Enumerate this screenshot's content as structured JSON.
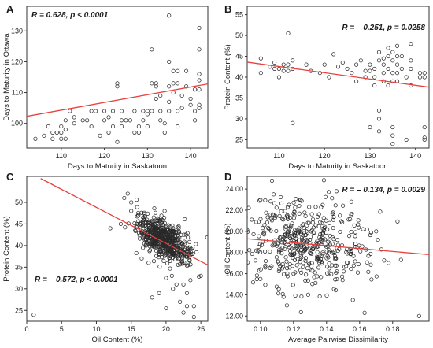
{
  "colors": {
    "points": "#2a2a2a",
    "fit_line": "#e8413c",
    "frame": "#333333",
    "background": "#ffffff"
  },
  "chart_data": [
    {
      "type": "scatter",
      "panel": "A",
      "xlabel": "Days to Maturity in Saskatoon",
      "ylabel": "Days to Maturity in Ottawa",
      "xlim": [
        102,
        144
      ],
      "ylim": [
        92,
        138
      ],
      "xticks": [
        110,
        120,
        130,
        140
      ],
      "yticks": [
        100,
        110,
        120,
        130
      ],
      "annotation": {
        "r_text": "R = 0.628, ",
        "p_text": "p < 0.0001"
      },
      "fit": {
        "x": [
          102,
          144
        ],
        "y": [
          102.3,
          112.8
        ]
      },
      "points": [
        [
          104,
          95
        ],
        [
          106,
          96
        ],
        [
          107,
          99
        ],
        [
          108,
          95
        ],
        [
          108,
          97
        ],
        [
          109,
          97
        ],
        [
          110,
          95
        ],
        [
          110,
          97
        ],
        [
          110,
          99
        ],
        [
          111,
          95
        ],
        [
          111,
          98
        ],
        [
          111,
          101
        ],
        [
          112,
          104
        ],
        [
          113,
          100
        ],
        [
          113,
          102
        ],
        [
          115,
          101
        ],
        [
          116,
          101
        ],
        [
          117,
          104
        ],
        [
          117,
          99
        ],
        [
          118,
          104
        ],
        [
          119,
          96
        ],
        [
          120,
          101
        ],
        [
          120,
          104
        ],
        [
          121,
          102
        ],
        [
          121,
          97
        ],
        [
          122,
          99
        ],
        [
          122,
          104
        ],
        [
          123,
          94
        ],
        [
          123,
          112
        ],
        [
          123,
          113
        ],
        [
          124,
          101
        ],
        [
          124,
          104
        ],
        [
          124,
          99
        ],
        [
          125,
          101
        ],
        [
          126,
          101
        ],
        [
          127,
          97
        ],
        [
          127,
          104
        ],
        [
          128,
          97
        ],
        [
          128,
          99
        ],
        [
          129,
          104
        ],
        [
          129,
          101
        ],
        [
          130,
          99
        ],
        [
          130,
          104
        ],
        [
          130,
          103
        ],
        [
          131,
          104
        ],
        [
          131,
          113
        ],
        [
          131,
          124
        ],
        [
          132,
          113
        ],
        [
          132,
          108
        ],
        [
          132,
          112
        ],
        [
          133,
          109
        ],
        [
          133,
          101
        ],
        [
          133,
          104
        ],
        [
          134,
          97
        ],
        [
          134,
          100
        ],
        [
          135,
          104
        ],
        [
          135,
          107
        ],
        [
          135,
          112
        ],
        [
          135,
          120
        ],
        [
          135,
          135
        ],
        [
          136,
          110
        ],
        [
          136,
          113
        ],
        [
          136,
          117
        ],
        [
          137,
          99
        ],
        [
          137,
          104
        ],
        [
          137,
          113
        ],
        [
          137,
          117
        ],
        [
          138,
          105
        ],
        [
          138,
          109
        ],
        [
          139,
          112
        ],
        [
          139,
          117
        ],
        [
          140,
          106
        ],
        [
          140,
          108
        ],
        [
          141,
          101
        ],
        [
          141,
          104
        ],
        [
          141,
          111
        ],
        [
          142,
          105
        ],
        [
          142,
          106
        ],
        [
          142,
          111
        ],
        [
          142,
          114
        ],
        [
          142,
          116
        ],
        [
          142,
          124
        ],
        [
          142,
          131
        ]
      ]
    },
    {
      "type": "scatter",
      "panel": "B",
      "xlabel": "Days to Maturity in Saskatoon",
      "ylabel": "Protein Content (%)",
      "xlim": [
        103,
        143
      ],
      "ylim": [
        23,
        57
      ],
      "xticks": [
        110,
        120,
        130,
        140
      ],
      "yticks": [
        25,
        30,
        35,
        40,
        45,
        50,
        55
      ],
      "annotation": {
        "r_text": "R = – 0.251, ",
        "p_text": "p = 0.0258"
      },
      "fit": {
        "x": [
          103,
          143
        ],
        "y": [
          43.6,
          37.6
        ]
      },
      "points": [
        [
          106,
          44.5
        ],
        [
          106,
          41
        ],
        [
          108,
          42.5
        ],
        [
          109,
          43.5
        ],
        [
          109,
          42
        ],
        [
          110,
          42
        ],
        [
          110,
          40
        ],
        [
          111,
          41.5
        ],
        [
          111,
          43
        ],
        [
          112,
          50.5
        ],
        [
          112,
          43
        ],
        [
          112,
          41.5
        ],
        [
          113,
          44
        ],
        [
          113,
          42
        ],
        [
          113,
          29
        ],
        [
          116,
          43
        ],
        [
          117,
          41.5
        ],
        [
          119,
          41
        ],
        [
          120,
          43
        ],
        [
          121,
          40
        ],
        [
          122,
          45.5
        ],
        [
          123,
          42.5
        ],
        [
          124,
          43.5
        ],
        [
          125,
          42
        ],
        [
          126,
          41
        ],
        [
          127,
          43
        ],
        [
          127,
          39
        ],
        [
          128,
          44
        ],
        [
          129,
          41.5
        ],
        [
          129,
          40
        ],
        [
          130,
          43
        ],
        [
          130,
          41.5
        ],
        [
          130,
          28
        ],
        [
          131,
          42
        ],
        [
          131,
          40
        ],
        [
          131,
          38
        ],
        [
          132,
          46
        ],
        [
          132,
          44
        ],
        [
          132,
          32
        ],
        [
          132,
          30
        ],
        [
          132,
          27
        ],
        [
          133,
          44.5
        ],
        [
          133,
          43
        ],
        [
          133,
          41
        ],
        [
          133,
          39
        ],
        [
          134,
          47
        ],
        [
          134,
          45
        ],
        [
          134,
          42
        ],
        [
          134,
          38
        ],
        [
          135,
          46
        ],
        [
          135,
          44
        ],
        [
          135,
          41
        ],
        [
          135,
          39
        ],
        [
          135,
          28
        ],
        [
          135,
          26
        ],
        [
          135,
          24
        ],
        [
          136,
          47.5
        ],
        [
          136,
          45
        ],
        [
          136,
          43
        ],
        [
          136,
          41
        ],
        [
          136,
          39
        ],
        [
          137,
          45
        ],
        [
          137,
          42
        ],
        [
          138,
          40
        ],
        [
          138,
          25
        ],
        [
          139,
          48
        ],
        [
          139,
          44
        ],
        [
          139,
          42
        ],
        [
          139,
          38
        ],
        [
          141,
          41
        ],
        [
          141,
          40
        ],
        [
          142,
          41
        ],
        [
          142,
          40
        ],
        [
          142,
          28
        ],
        [
          142,
          25.5
        ],
        [
          142,
          25
        ]
      ]
    },
    {
      "type": "scatter",
      "panel": "C",
      "xlabel": "Oil Content (%)",
      "ylabel": "Protein Content (%)",
      "xlim": [
        0,
        26
      ],
      "ylim": [
        22.5,
        56
      ],
      "xticks": [
        0,
        5,
        10,
        15,
        20,
        25
      ],
      "yticks": [
        25,
        30,
        35,
        40,
        45,
        50
      ],
      "annotation": {
        "r_text": "R = – 0.572, ",
        "p_text": "p < 0.0001"
      },
      "fit": {
        "x": [
          2,
          26
        ],
        "y": [
          55.5,
          35.5
        ]
      },
      "cloud": {
        "n": 620,
        "x_mean": 19.5,
        "x_sd": 2.0,
        "y_mean": 41.5,
        "y_sd": 2.8,
        "corr": -0.6
      },
      "outliers": [
        [
          1,
          24
        ],
        [
          12,
          44
        ],
        [
          14,
          51
        ],
        [
          14.5,
          52
        ],
        [
          15,
          50
        ],
        [
          15,
          48
        ],
        [
          16,
          47
        ],
        [
          13.5,
          45
        ],
        [
          18,
          28
        ],
        [
          19,
          29
        ],
        [
          20,
          25.5
        ],
        [
          20,
          32.5
        ],
        [
          21,
          30
        ],
        [
          21.5,
          31
        ],
        [
          22,
          27
        ],
        [
          22.5,
          31
        ],
        [
          23,
          29
        ],
        [
          23,
          26
        ],
        [
          24,
          26
        ],
        [
          24,
          23.5
        ],
        [
          23.5,
          32
        ],
        [
          25,
          33
        ],
        [
          22.5,
          24.5
        ],
        [
          17.5,
          36
        ],
        [
          16.5,
          37
        ]
      ]
    },
    {
      "type": "scatter",
      "panel": "D",
      "xlabel": "Average  Pairwise Dissimilarity",
      "ylabel": "Oil Content (%)",
      "xlim": [
        0.092,
        0.202
      ],
      "ylim": [
        11.5,
        25.2
      ],
      "xticks": [
        0.1,
        0.12,
        0.14,
        0.16,
        0.18
      ],
      "yticks": [
        12,
        14,
        16,
        18,
        20,
        22,
        24
      ],
      "annotation": {
        "r_text": "R = – 0.134, ",
        "p_text": "p = 0.0029"
      },
      "fit": {
        "x": [
          0.092,
          0.202
        ],
        "y": [
          19.3,
          17.8
        ]
      },
      "cloud": {
        "n": 470,
        "x_mean": 0.128,
        "x_sd": 0.019,
        "y_mean": 18.8,
        "y_sd": 2.1,
        "corr": -0.13
      },
      "outliers": [
        [
          0.107,
          24.8
        ],
        [
          0.108,
          23.5
        ],
        [
          0.1,
          23
        ],
        [
          0.116,
          13
        ],
        [
          0.114,
          13.8
        ],
        [
          0.163,
          12.3
        ],
        [
          0.196,
          12
        ],
        [
          0.185,
          17.3
        ],
        [
          0.17,
          20
        ],
        [
          0.1,
          15.5
        ],
        [
          0.155,
          22.8
        ],
        [
          0.146,
          23.8
        ]
      ]
    }
  ]
}
